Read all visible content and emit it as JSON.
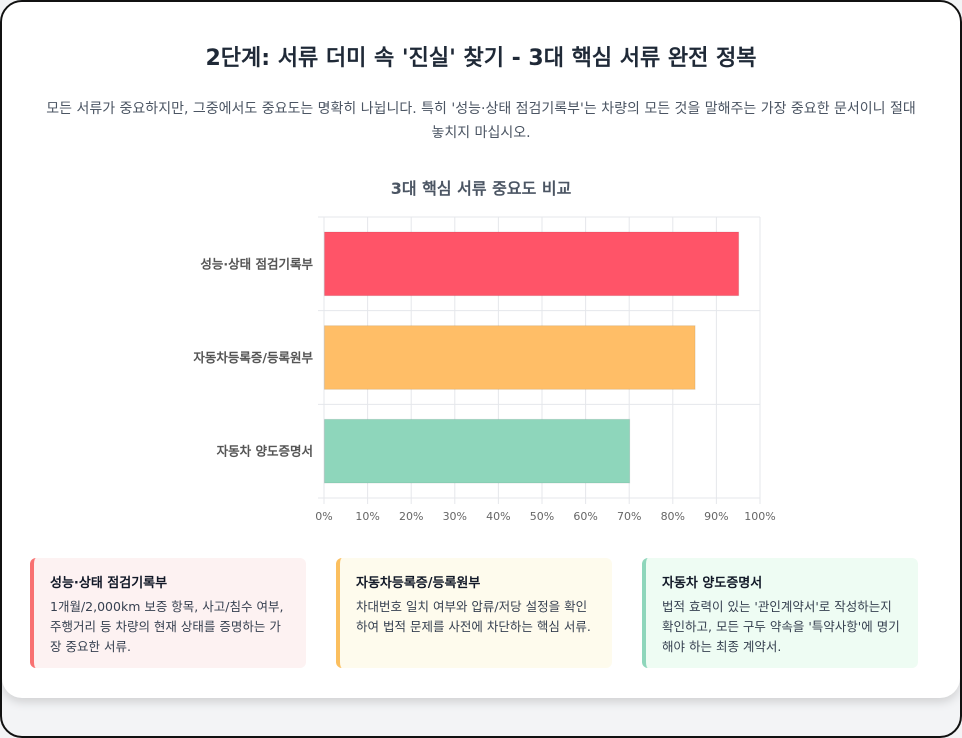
{
  "header": {
    "title": "2단계: 서류 더미 속 '진실' 찾기 - 3대 핵심 서류 완전 정복",
    "subtitle": "모든 서류가 중요하지만, 그중에서도 중요도는 명확히 나뉩니다. 특히 '성능·상태 점검기록부'는 차량의 모든 것을 말해주는 가장 중요한 문서이니 절대 놓치지 마십시오."
  },
  "chart_data": {
    "type": "bar",
    "orientation": "horizontal",
    "title": "3대 핵심 서류 중요도 비교",
    "categories": [
      "성능·상태 점검기록부",
      "자동차등록증/등록원부",
      "자동차 양도증명서"
    ],
    "values": [
      95,
      85,
      70
    ],
    "colors": [
      "#ff5468",
      "#ffbe67",
      "#8ed6bb"
    ],
    "xlim": [
      0,
      100
    ],
    "xticks": [
      "0%",
      "10%",
      "20%",
      "30%",
      "40%",
      "50%",
      "60%",
      "70%",
      "80%",
      "90%",
      "100%"
    ],
    "grid": true,
    "legend": "none"
  },
  "cards": [
    {
      "title": "성능·상태 점검기록부",
      "text": "1개월/2,000km 보증 항목, 사고/침수 여부, 주행거리 등 차량의 현재 상태를 증명하는 가장 중요한 서류."
    },
    {
      "title": "자동차등록증/등록원부",
      "text": "차대번호 일치 여부와 압류/저당 설정을 확인하여 법적 문제를 사전에 차단하는 핵심 서류."
    },
    {
      "title": "자동차 양도증명서",
      "text": "법적 효력이 있는 '관인계약서'로 작성하는지 확인하고, 모든 구두 약속을 '특약사항'에 명기해야 하는 최종 계약서."
    }
  ]
}
